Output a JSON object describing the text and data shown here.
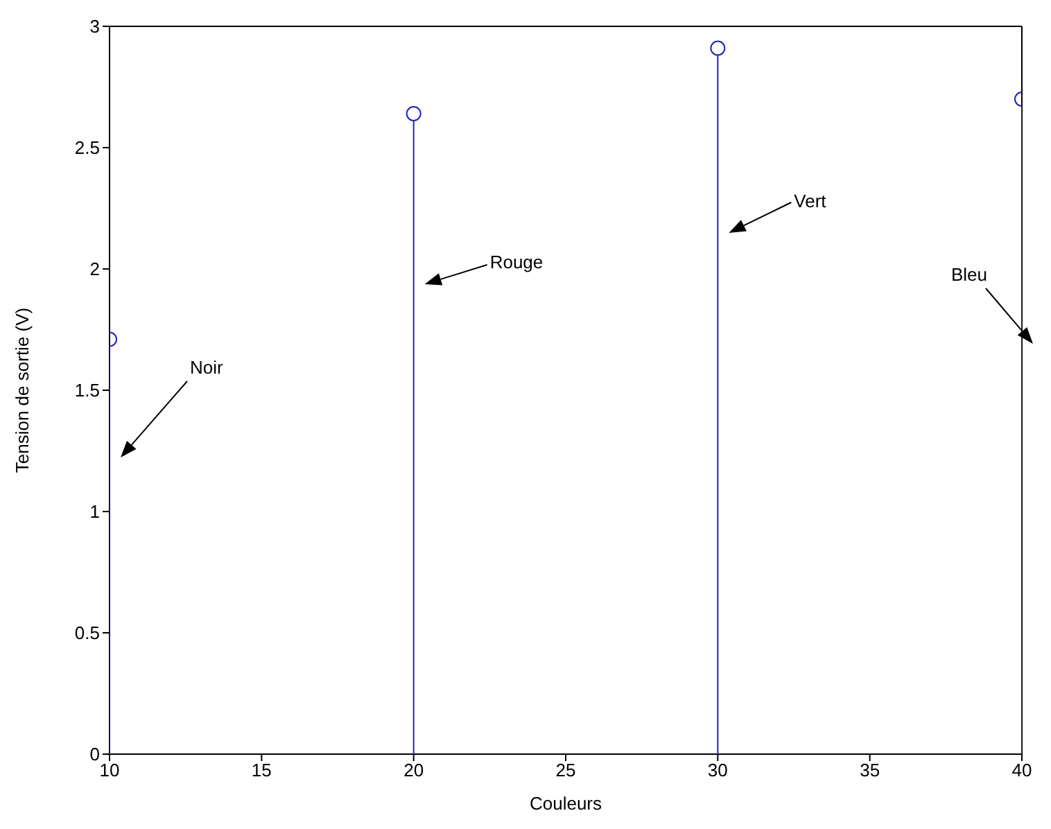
{
  "chart_data": {
    "type": "lollipop",
    "xlabel": "Couleurs",
    "ylabel": "Tension de sortie (V)",
    "x": [
      10,
      20,
      30,
      40
    ],
    "series": [
      {
        "color": "#2323b0",
        "values": [
          1.71,
          2.64,
          2.91,
          2.7
        ]
      }
    ],
    "xlim": [
      10,
      40
    ],
    "xticks": [
      10,
      15,
      20,
      25,
      30,
      35,
      40
    ],
    "ylim": [
      0,
      3
    ],
    "yticks": [
      0,
      0.5,
      1,
      1.5,
      2,
      2.5,
      3
    ],
    "marker": "circle",
    "annotations": [
      "Noir",
      "Rouge",
      "Vert",
      "Bleu"
    ]
  }
}
